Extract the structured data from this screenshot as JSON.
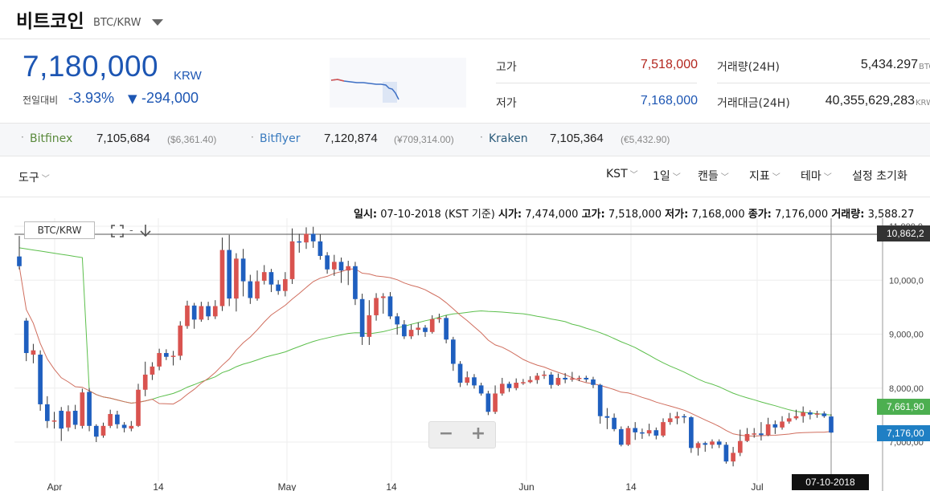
{
  "header": {
    "title": "비트코인",
    "pair": "BTC/KRW"
  },
  "summary": {
    "price": "7,180,000",
    "unit": "KRW",
    "change_label": "전일대비",
    "change_pct": "-3.93%",
    "change_arrow": "▼",
    "change_amt": "-294,000",
    "high_label": "고가",
    "high_value": "7,518,000",
    "low_label": "저가",
    "low_value": "7,168,000",
    "volume_label": "거래량(24H)",
    "volume_value": "5,434.297",
    "volume_unit": "BTC",
    "turnover_label": "거래대금(24H)",
    "turnover_value": "40,355,629,283",
    "turnover_unit": "KRW"
  },
  "exchanges": [
    {
      "name": "Bitfinex",
      "price": "7,105,684",
      "fiat": "($6,361.40)",
      "color": "#5a8a3c"
    },
    {
      "name": "Bitflyer",
      "price": "7,120,874",
      "fiat": "(¥709,314.00)",
      "color": "#3a7bbf"
    },
    {
      "name": "Kraken",
      "price": "7,105,364",
      "fiat": "(€5,432.90)",
      "color": "#2a5a7a"
    }
  ],
  "toolbar": {
    "tools_label": "도구",
    "timezone": "KST",
    "interval": "1일",
    "chart_type": "캔들",
    "indicators": "지표",
    "theme": "테마",
    "reset": "설정 초기화"
  },
  "info": {
    "date_label": "일시:",
    "date_value": "07-10-2018 (KST 기준)",
    "open_label": "시가:",
    "open_value": "7,474,000",
    "high_label": "고가:",
    "high_value": "7,518,000",
    "low_label": "저가:",
    "low_value": "7,168,000",
    "close_label": "종가:",
    "close_value": "7,176,000",
    "vol_label": "거래량:",
    "vol_value": "3,588.27"
  },
  "chart_controls": {
    "pair_box": "BTC/KRW",
    "expand_icon": "expand-icon",
    "download_icon": "download-icon",
    "zoom_out": "−",
    "zoom_in": "+"
  },
  "price_tags": [
    {
      "id": "top",
      "text": "10,862,2",
      "color": "#333333"
    },
    {
      "id": "ma-green",
      "text": "7,661,90",
      "color": "#4caf50"
    },
    {
      "id": "last",
      "text": "7,176,00",
      "color": "#1f7fc4"
    }
  ],
  "crosshair_date": "07-10-2018",
  "chart_data": {
    "type": "candlestick",
    "y_ticks": [
      "11,000,0",
      "10,000,0",
      "9,000,00",
      "8,000,00",
      "7,000,00"
    ],
    "y_tick_values": [
      11000000,
      10000000,
      9000000,
      8000000,
      7000000
    ],
    "x_ticks": [
      "Apr",
      "14",
      "May",
      "14",
      "Jun",
      "14",
      "Jul"
    ],
    "up_color": "#d9534f",
    "down_color": "#1f5fbf",
    "ma_short_color": "#d06e5e",
    "ma_long_color": "#5cbf4c",
    "candles": [
      [
        10440000,
        10260000,
        10820000,
        10200000
      ],
      [
        9250000,
        8650000,
        9300000,
        8500000
      ],
      [
        8620000,
        8700000,
        8820000,
        8460000
      ],
      [
        8620000,
        7700000,
        8700000,
        7580000
      ],
      [
        7700000,
        7390000,
        7850000,
        7260000
      ],
      [
        7390000,
        7400000,
        7560000,
        7250000
      ],
      [
        7580000,
        7250000,
        7650000,
        7020000
      ],
      [
        7270000,
        7570000,
        7680000,
        7200000
      ],
      [
        7580000,
        7320000,
        7690000,
        7240000
      ],
      [
        7300000,
        7920000,
        7990000,
        7250000
      ],
      [
        7930000,
        7300000,
        8000000,
        7200000
      ],
      [
        7300000,
        7100000,
        7330000,
        7000000
      ],
      [
        7120000,
        7300000,
        7360000,
        7080000
      ],
      [
        7300000,
        7520000,
        7600000,
        7260000
      ],
      [
        7510000,
        7330000,
        7580000,
        7250000
      ],
      [
        7320000,
        7260000,
        7370000,
        7180000
      ],
      [
        7250000,
        7300000,
        7390000,
        7200000
      ],
      [
        7300000,
        7970000,
        8080000,
        7280000
      ],
      [
        7970000,
        8250000,
        8490000,
        7850000
      ],
      [
        8250000,
        8400000,
        8480000,
        8150000
      ],
      [
        8400000,
        8650000,
        8730000,
        8330000
      ],
      [
        8650000,
        8580000,
        8720000,
        8520000
      ],
      [
        8580000,
        8600000,
        8690000,
        8420000
      ],
      [
        8600000,
        9160000,
        9240000,
        8520000
      ],
      [
        9150000,
        9530000,
        9620000,
        9100000
      ],
      [
        9530000,
        9270000,
        9580000,
        9100000
      ],
      [
        9270000,
        9520000,
        9600000,
        9230000
      ],
      [
        9520000,
        9330000,
        9600000,
        9260000
      ],
      [
        9330000,
        9520000,
        9630000,
        9280000
      ],
      [
        9520000,
        10560000,
        10790000,
        9430000
      ],
      [
        10560000,
        9660000,
        10840000,
        9520000
      ],
      [
        9660000,
        10400000,
        10500000,
        9420000
      ],
      [
        10400000,
        9980000,
        10580000,
        9700000
      ],
      [
        9980000,
        9670000,
        10100000,
        9560000
      ],
      [
        9660000,
        9980000,
        10180000,
        9620000
      ],
      [
        9990000,
        10150000,
        10280000,
        9920000
      ],
      [
        10150000,
        9920000,
        10210000,
        9780000
      ],
      [
        9920000,
        9800000,
        10000000,
        9730000
      ],
      [
        9800000,
        10020000,
        10150000,
        9700000
      ],
      [
        10020000,
        10720000,
        10960000,
        9930000
      ],
      [
        10720000,
        10700000,
        10860000,
        10510000
      ],
      [
        10700000,
        10860000,
        10980000,
        10580000
      ],
      [
        10860000,
        10720000,
        10990000,
        10600000
      ],
      [
        10720000,
        10450000,
        10850000,
        10380000
      ],
      [
        10460000,
        10200000,
        10520000,
        10120000
      ],
      [
        10200000,
        10340000,
        10470000,
        10080000
      ],
      [
        10340000,
        10180000,
        10420000,
        9950000
      ],
      [
        10180000,
        10260000,
        10360000,
        9910000
      ],
      [
        10260000,
        9650000,
        10340000,
        9540000
      ],
      [
        9650000,
        8950000,
        9750000,
        8800000
      ],
      [
        8950000,
        9350000,
        9630000,
        8800000
      ],
      [
        9350000,
        9670000,
        9760000,
        9250000
      ],
      [
        9670000,
        9700000,
        9760000,
        9380000
      ],
      [
        9700000,
        9330000,
        9780000,
        9280000
      ],
      [
        9330000,
        9180000,
        9390000,
        8990000
      ],
      [
        9180000,
        8960000,
        9260000,
        8910000
      ],
      [
        8960000,
        9080000,
        9180000,
        8910000
      ],
      [
        9080000,
        9120000,
        9220000,
        8980000
      ],
      [
        9120000,
        9040000,
        9170000,
        8950000
      ],
      [
        9040000,
        9280000,
        9350000,
        9010000
      ],
      [
        9280000,
        9300000,
        9380000,
        9210000
      ],
      [
        9300000,
        8900000,
        9350000,
        8830000
      ],
      [
        8900000,
        8450000,
        8950000,
        8320000
      ],
      [
        8450000,
        8100000,
        8500000,
        8020000
      ],
      [
        8100000,
        8200000,
        8310000,
        8050000
      ],
      [
        8200000,
        8050000,
        8260000,
        7990000
      ],
      [
        8050000,
        7900000,
        8100000,
        7860000
      ],
      [
        7900000,
        7560000,
        7950000,
        7500000
      ],
      [
        7560000,
        7900000,
        8050000,
        7520000
      ],
      [
        7900000,
        8080000,
        8190000,
        7860000
      ],
      [
        8080000,
        8000000,
        8120000,
        7930000
      ],
      [
        8000000,
        8100000,
        8180000,
        7960000
      ],
      [
        8100000,
        8110000,
        8170000,
        8060000
      ],
      [
        8110000,
        8150000,
        8220000,
        8090000
      ],
      [
        8150000,
        8230000,
        8280000,
        8080000
      ],
      [
        8230000,
        8250000,
        8320000,
        8170000
      ],
      [
        8250000,
        8060000,
        8300000,
        7990000
      ],
      [
        8060000,
        8190000,
        8270000,
        8040000
      ],
      [
        8190000,
        8160000,
        8280000,
        8090000
      ],
      [
        8160000,
        8180000,
        8300000,
        8120000
      ],
      [
        8180000,
        8190000,
        8230000,
        8130000
      ],
      [
        8190000,
        8160000,
        8230000,
        8110000
      ],
      [
        8160000,
        8060000,
        8210000,
        8000000
      ],
      [
        8060000,
        7480000,
        8080000,
        7340000
      ],
      [
        7480000,
        7450000,
        7630000,
        7240000
      ],
      [
        7450000,
        7240000,
        7530000,
        7200000
      ],
      [
        7240000,
        6950000,
        7290000,
        6920000
      ],
      [
        6950000,
        7260000,
        7300000,
        6930000
      ],
      [
        7260000,
        7180000,
        7370000,
        7040000
      ],
      [
        7180000,
        7160000,
        7250000,
        7060000
      ],
      [
        7160000,
        7220000,
        7340000,
        7110000
      ],
      [
        7220000,
        7120000,
        7270000,
        7050000
      ],
      [
        7120000,
        7370000,
        7440000,
        7090000
      ],
      [
        7370000,
        7440000,
        7540000,
        7320000
      ],
      [
        7440000,
        7480000,
        7560000,
        7330000
      ],
      [
        7480000,
        7460000,
        7520000,
        7350000
      ],
      [
        7460000,
        6890000,
        7480000,
        6800000
      ],
      [
        6890000,
        6980000,
        7010000,
        6750000
      ],
      [
        6980000,
        6950000,
        7010000,
        6820000
      ],
      [
        6950000,
        7010000,
        7050000,
        6880000
      ],
      [
        7010000,
        6950000,
        7050000,
        6890000
      ],
      [
        6950000,
        6640000,
        7000000,
        6600000
      ],
      [
        6640000,
        6800000,
        6910000,
        6550000
      ],
      [
        6800000,
        7020000,
        7230000,
        6740000
      ],
      [
        7020000,
        7150000,
        7260000,
        7000000
      ],
      [
        7150000,
        7160000,
        7260000,
        7080000
      ],
      [
        7160000,
        7130000,
        7370000,
        7030000
      ],
      [
        7130000,
        7330000,
        7450000,
        7110000
      ],
      [
        7330000,
        7270000,
        7400000,
        7150000
      ],
      [
        7270000,
        7380000,
        7480000,
        7230000
      ],
      [
        7380000,
        7440000,
        7540000,
        7340000
      ],
      [
        7440000,
        7480000,
        7600000,
        7410000
      ],
      [
        7480000,
        7550000,
        7660000,
        7360000
      ],
      [
        7550000,
        7510000,
        7590000,
        7420000
      ],
      [
        7510000,
        7530000,
        7580000,
        7450000
      ],
      [
        7530000,
        7480000,
        7570000,
        7450000
      ],
      [
        7474000,
        7176000,
        7518000,
        7168000
      ]
    ]
  }
}
